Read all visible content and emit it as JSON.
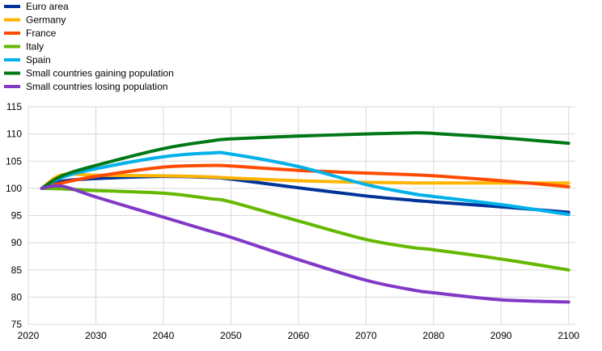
{
  "chart_data": {
    "type": "line",
    "title": "",
    "xlabel": "",
    "ylabel": "",
    "xlim": [
      2020,
      2100
    ],
    "ylim": [
      75,
      115
    ],
    "x_ticks": [
      2020,
      2030,
      2040,
      2050,
      2060,
      2070,
      2080,
      2090,
      2100
    ],
    "y_ticks": [
      75,
      80,
      85,
      90,
      95,
      100,
      105,
      110,
      115
    ],
    "grid": true,
    "legend_placement": "top-left",
    "x": [
      2022,
      2025,
      2030,
      2040,
      2047,
      2050,
      2060,
      2070,
      2077,
      2080,
      2090,
      2100
    ],
    "series": [
      {
        "name": "Euro area",
        "color": "#003299",
        "values": [
          100,
          101.3,
          101.8,
          102.2,
          102.0,
          101.7,
          100.1,
          98.6,
          97.8,
          97.5,
          96.6,
          95.6
        ]
      },
      {
        "name": "Germany",
        "color": "#FFB400",
        "values": [
          100,
          102.5,
          102.4,
          102.3,
          102.1,
          101.9,
          101.4,
          101.1,
          101.0,
          101.0,
          101.0,
          101.0
        ]
      },
      {
        "name": "France",
        "color": "#FF4B00",
        "values": [
          100,
          101.0,
          102.2,
          103.9,
          104.2,
          104.1,
          103.3,
          102.8,
          102.5,
          102.3,
          101.4,
          100.3
        ]
      },
      {
        "name": "Italy",
        "color": "#65B800",
        "values": [
          100,
          99.9,
          99.6,
          99.1,
          98.1,
          97.5,
          94.0,
          90.6,
          89.1,
          88.7,
          87.0,
          85.0
        ]
      },
      {
        "name": "Spain",
        "color": "#00B1EA",
        "values": [
          100,
          102.0,
          103.6,
          105.8,
          106.5,
          106.3,
          104.0,
          100.7,
          99.0,
          98.5,
          97.0,
          95.2
        ]
      },
      {
        "name": "Small countries gaining population",
        "color": "#007816",
        "values": [
          100,
          102.3,
          104.2,
          107.3,
          108.7,
          109.1,
          109.6,
          110.0,
          110.2,
          110.1,
          109.3,
          108.3
        ]
      },
      {
        "name": "Small countries losing population",
        "color": "#8139C6",
        "values": [
          100,
          100.4,
          98.4,
          94.7,
          92.1,
          91.0,
          86.9,
          83.1,
          81.3,
          80.8,
          79.5,
          79.1
        ]
      }
    ]
  }
}
